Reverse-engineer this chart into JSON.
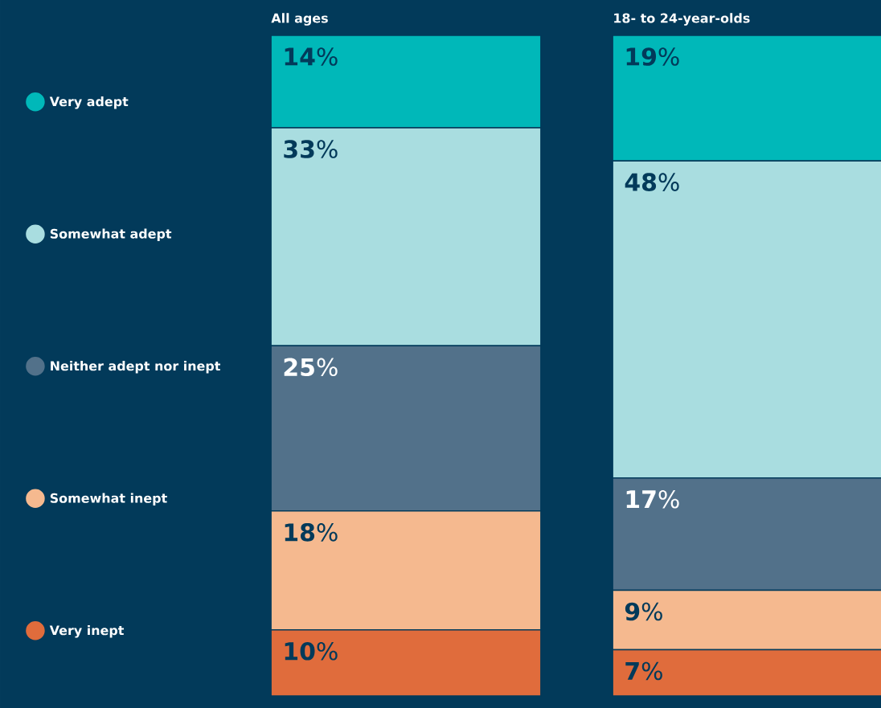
{
  "chart_data": {
    "type": "bar",
    "stacked": true,
    "categories": [
      "All ages",
      "18- to 24-year-olds"
    ],
    "series": [
      {
        "name": "Very inept",
        "color": "#e06c3c",
        "values": [
          10,
          7
        ],
        "value_labels": [
          "**10**%",
          "**7**%"
        ]
      },
      {
        "name": "Somewhat inept",
        "color": "#f5b98f",
        "values": [
          18,
          9
        ],
        "value_labels": [
          "**18**%",
          "**9**%"
        ]
      },
      {
        "name": "Neither adept nor inept",
        "color": "#52718a",
        "values": [
          25,
          17
        ],
        "value_labels": [
          "**25**%",
          "**17**%"
        ]
      },
      {
        "name": "Somewhat adept",
        "color": "#a9dde0",
        "values": [
          33,
          48
        ],
        "value_labels": [
          "**33**%",
          "**48**%"
        ]
      },
      {
        "name": "Very adept",
        "color": "#00b8b9",
        "values": [
          14,
          19
        ],
        "value_labels": [
          "**14**%",
          "**19**%"
        ]
      }
    ],
    "legend": "left"
  }
}
